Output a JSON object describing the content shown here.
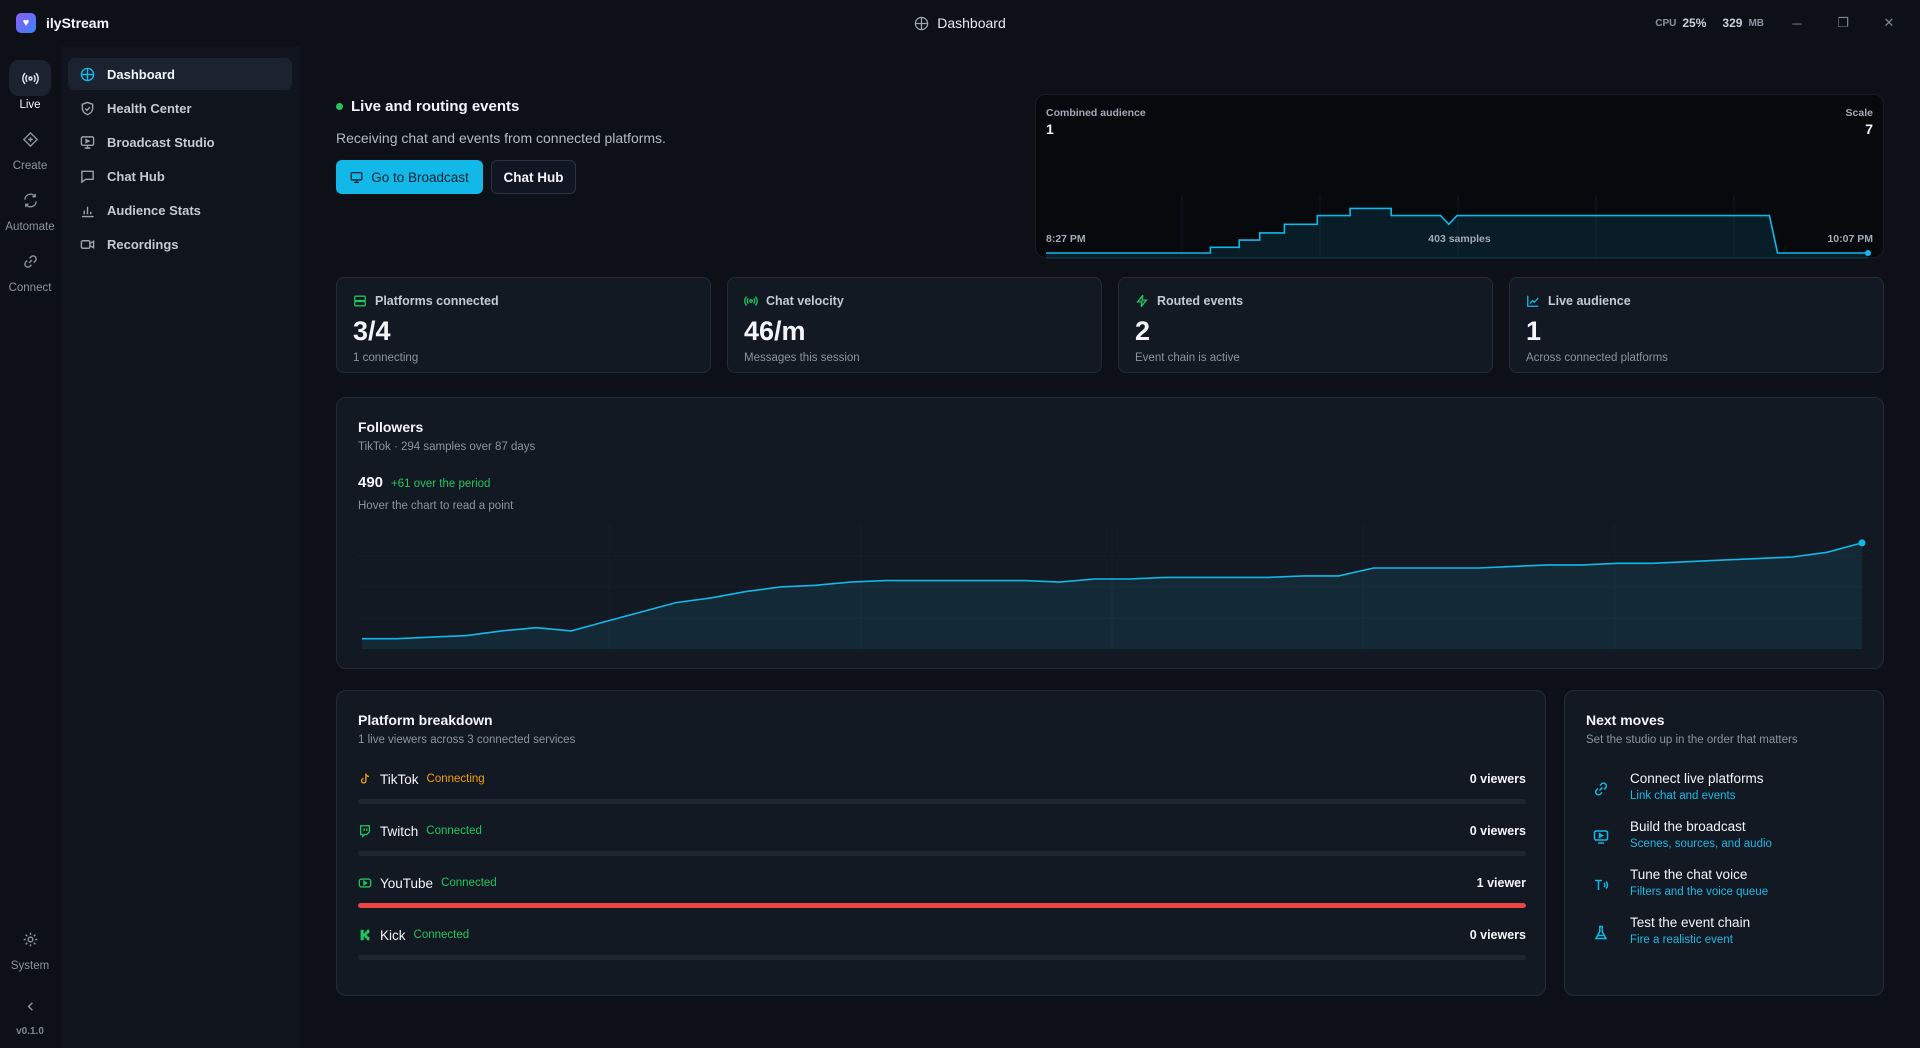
{
  "app": {
    "name": "ilyStream",
    "version": "v0.1.0"
  },
  "titlebar": {
    "title": "Dashboard",
    "cpu_label": "CPU",
    "cpu_value": "25%",
    "mem_value": "329",
    "mem_unit": "MB"
  },
  "rail": [
    {
      "label": "Live",
      "icon": "live-broadcast-icon",
      "active": true
    },
    {
      "label": "Create",
      "icon": "create-diamond-icon"
    },
    {
      "label": "Automate",
      "icon": "automate-refresh-icon"
    },
    {
      "label": "Connect",
      "icon": "link-icon"
    }
  ],
  "rail_system": {
    "label": "System",
    "icon": "gear-icon"
  },
  "sidenav": [
    {
      "label": "Dashboard",
      "icon": "dashboard-icon",
      "active": true
    },
    {
      "label": "Health Center",
      "icon": "shield-icon"
    },
    {
      "label": "Broadcast Studio",
      "icon": "monitor-icon"
    },
    {
      "label": "Chat Hub",
      "icon": "chat-icon"
    },
    {
      "label": "Audience Stats",
      "icon": "bar-chart-icon"
    },
    {
      "label": "Recordings",
      "icon": "video-icon"
    }
  ],
  "hero": {
    "title": "Live and routing events",
    "subtitle": "Receiving chat and events from connected platforms.",
    "primary_button": "Go to Broadcast",
    "secondary_button": "Chat Hub"
  },
  "audience_card": {
    "label": "Combined audience",
    "value": "1",
    "scale_label": "Scale",
    "scale_value": "7",
    "x_start": "8:27 PM",
    "x_mid": "403 samples",
    "x_end": "10:07 PM"
  },
  "stats": [
    {
      "label": "Platforms connected",
      "value": "3/4",
      "caption": "1 connecting",
      "icon": "server-icon"
    },
    {
      "label": "Chat velocity",
      "value": "46/m",
      "caption": "Messages this session",
      "icon": "broadcast-icon"
    },
    {
      "label": "Routed events",
      "value": "2",
      "caption": "Event chain is active",
      "icon": "lightning-icon"
    },
    {
      "label": "Live audience",
      "value": "1",
      "caption": "Across connected platforms",
      "icon": "trend-icon"
    }
  ],
  "followers": {
    "title": "Followers",
    "subtitle": "TikTok · 294 samples over 87 days",
    "value": "490",
    "delta": "+61 over the period",
    "hint": "Hover the chart to read a point"
  },
  "chart_data": [
    {
      "type": "line",
      "title": "Combined audience",
      "x_labels": [
        "8:27 PM",
        "10:07 PM"
      ],
      "samples": 403,
      "ylim": [
        0,
        7
      ],
      "points": [
        {
          "t": 0.0,
          "v": 1
        },
        {
          "t": 0.2,
          "v": 1
        },
        {
          "t": 0.2,
          "v": 1.4
        },
        {
          "t": 0.235,
          "v": 1.4
        },
        {
          "t": 0.235,
          "v": 1.9
        },
        {
          "t": 0.26,
          "v": 1.9
        },
        {
          "t": 0.26,
          "v": 2.4
        },
        {
          "t": 0.29,
          "v": 2.4
        },
        {
          "t": 0.29,
          "v": 3.0
        },
        {
          "t": 0.33,
          "v": 3.0
        },
        {
          "t": 0.33,
          "v": 3.6
        },
        {
          "t": 0.37,
          "v": 3.6
        },
        {
          "t": 0.37,
          "v": 4.1
        },
        {
          "t": 0.42,
          "v": 4.1
        },
        {
          "t": 0.42,
          "v": 3.6
        },
        {
          "t": 0.48,
          "v": 3.6
        },
        {
          "t": 0.49,
          "v": 3.0
        },
        {
          "t": 0.5,
          "v": 3.6
        },
        {
          "t": 0.88,
          "v": 3.6
        },
        {
          "t": 0.89,
          "v": 1
        },
        {
          "t": 1.0,
          "v": 1
        }
      ]
    },
    {
      "type": "area",
      "title": "Followers",
      "days": 87,
      "samples": 294,
      "values": [
        429,
        429,
        430,
        431,
        434,
        436,
        434,
        440,
        446,
        452,
        455,
        459,
        462,
        463,
        465,
        466,
        466,
        466,
        466,
        466,
        465,
        467,
        467,
        468,
        468,
        468,
        468,
        469,
        469,
        474,
        474,
        474,
        474,
        475,
        476,
        476,
        477,
        477,
        478,
        479,
        480,
        481,
        484,
        490
      ]
    }
  ],
  "platforms": {
    "title": "Platform breakdown",
    "subtitle": "1 live viewers across 3 connected services",
    "rows": [
      {
        "name": "TikTok",
        "status": "Connecting",
        "status_color": "#f59e0b",
        "viewers": "0 viewers",
        "share": 0,
        "icon": "tiktok-icon",
        "icon_color": "#f59e0b"
      },
      {
        "name": "Twitch",
        "status": "Connected",
        "status_color": "#22c55e",
        "viewers": "0 viewers",
        "share": 0,
        "icon": "twitch-icon",
        "icon_color": "#22c55e"
      },
      {
        "name": "YouTube",
        "status": "Connected",
        "status_color": "#22c55e",
        "viewers": "1 viewer",
        "share": 1,
        "icon": "youtube-icon",
        "icon_color": "#22c55e"
      },
      {
        "name": "Kick",
        "status": "Connected",
        "status_color": "#22c55e",
        "viewers": "0 viewers",
        "share": 0,
        "icon": "kick-icon",
        "icon_color": "#22c55e"
      }
    ]
  },
  "next_moves": {
    "title": "Next moves",
    "subtitle": "Set the studio up in the order that matters",
    "items": [
      {
        "title": "Connect live platforms",
        "link": "Link chat and events",
        "icon": "link-icon"
      },
      {
        "title": "Build the broadcast",
        "link": "Scenes, sources, and audio",
        "icon": "monitor-play-icon"
      },
      {
        "title": "Tune the chat voice",
        "link": "Filters and the voice queue",
        "icon": "text-voice-icon"
      },
      {
        "title": "Test the event chain",
        "link": "Fire a realistic event",
        "icon": "flask-icon"
      }
    ]
  },
  "colors": {
    "accent": "#12b8e8",
    "connected": "#22c55e",
    "connecting": "#f59e0b",
    "youtube_bar": "#ef4444"
  }
}
